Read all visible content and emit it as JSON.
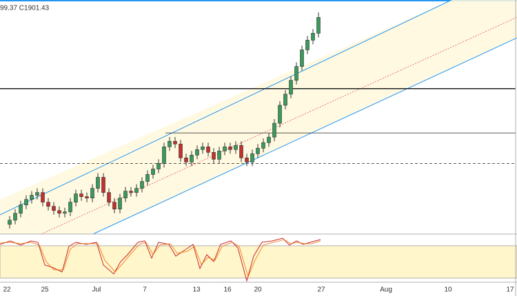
{
  "chart_data": {
    "type": "candlestick",
    "header_text": "99.37 C1901.43",
    "x_labels": [
      "22",
      "25",
      "Jul",
      "7",
      "13",
      "16",
      "20",
      "27",
      "Aug",
      "10",
      "17"
    ],
    "ylim": [
      1745,
      1914
    ],
    "levels": [
      {
        "value": 1850,
        "style": "solid"
      },
      {
        "value": 1818,
        "style": "thin"
      },
      {
        "value": 1796,
        "style": "dashed"
      }
    ],
    "up_color": "#3a9a5c",
    "down_color": "#c4302b",
    "open": [
      1752,
      1755,
      1760,
      1766,
      1770,
      1773,
      1775,
      1768,
      1765,
      1762,
      1760,
      1761,
      1768,
      1774,
      1772,
      1771,
      1778,
      1786,
      1775,
      1768,
      1763,
      1771,
      1776,
      1775,
      1778,
      1783,
      1788,
      1792,
      1796,
      1808,
      1812,
      1810,
      1800,
      1797,
      1802,
      1806,
      1808,
      1804,
      1799,
      1805,
      1808,
      1806,
      1809,
      1800,
      1797,
      1803,
      1807,
      1811,
      1815,
      1825,
      1838,
      1846,
      1856,
      1866,
      1878,
      1885,
      1890
    ],
    "high": [
      1758,
      1763,
      1769,
      1773,
      1776,
      1778,
      1778,
      1771,
      1768,
      1765,
      1764,
      1771,
      1777,
      1777,
      1775,
      1781,
      1789,
      1789,
      1778,
      1771,
      1774,
      1779,
      1779,
      1781,
      1786,
      1791,
      1795,
      1799,
      1811,
      1815,
      1815,
      1813,
      1803,
      1805,
      1809,
      1811,
      1811,
      1807,
      1808,
      1811,
      1811,
      1812,
      1812,
      1803,
      1806,
      1810,
      1814,
      1818,
      1828,
      1841,
      1849,
      1859,
      1869,
      1881,
      1888,
      1893,
      1905
    ],
    "low": [
      1749,
      1752,
      1757,
      1763,
      1767,
      1770,
      1765,
      1762,
      1759,
      1757,
      1757,
      1758,
      1765,
      1769,
      1768,
      1768,
      1775,
      1772,
      1765,
      1760,
      1760,
      1768,
      1772,
      1772,
      1775,
      1780,
      1785,
      1789,
      1793,
      1805,
      1807,
      1797,
      1794,
      1794,
      1799,
      1803,
      1801,
      1796,
      1796,
      1802,
      1803,
      1803,
      1797,
      1794,
      1794,
      1800,
      1804,
      1808,
      1812,
      1822,
      1835,
      1843,
      1853,
      1863,
      1875,
      1882,
      1887
    ],
    "close": [
      1755,
      1760,
      1766,
      1770,
      1773,
      1775,
      1768,
      1765,
      1762,
      1760,
      1761,
      1768,
      1774,
      1772,
      1771,
      1778,
      1786,
      1775,
      1768,
      1763,
      1771,
      1776,
      1775,
      1778,
      1783,
      1788,
      1792,
      1796,
      1808,
      1812,
      1810,
      1800,
      1797,
      1802,
      1806,
      1808,
      1804,
      1799,
      1805,
      1808,
      1806,
      1809,
      1800,
      1797,
      1803,
      1807,
      1811,
      1815,
      1825,
      1838,
      1846,
      1856,
      1866,
      1878,
      1885,
      1890,
      1901.43
    ]
  }
}
